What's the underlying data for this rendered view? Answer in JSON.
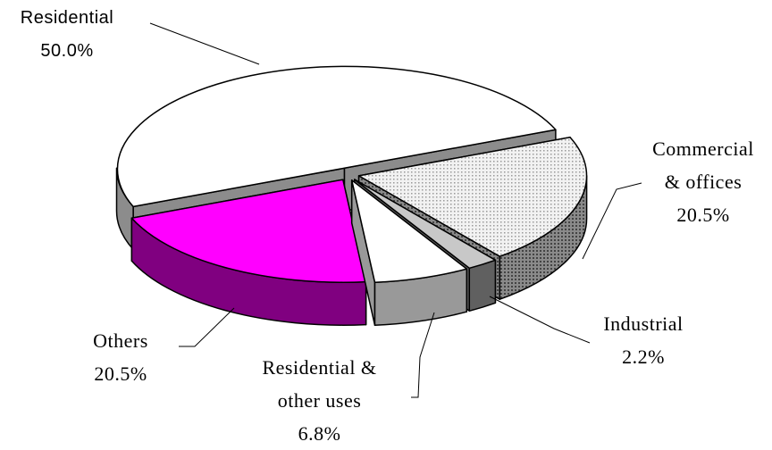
{
  "chart_data": {
    "type": "pie3d",
    "categories": [
      "Residential",
      "Commercial & offices",
      "Industrial",
      "Residential & other uses",
      "Others"
    ],
    "values": [
      50.0,
      20.5,
      2.2,
      6.8,
      20.5
    ],
    "value_labels": [
      "50.0%",
      "20.5%",
      "2.2%",
      "6.8%",
      "20.5%"
    ],
    "colors": [
      "#ffffff",
      "#e4e4e4",
      "#c8c8c8",
      "#ffffff",
      "#ff00ff"
    ],
    "side_colors": [
      "#8c8c8c",
      "#8a8a8a",
      "#606060",
      "#999999",
      "#800080"
    ]
  }
}
